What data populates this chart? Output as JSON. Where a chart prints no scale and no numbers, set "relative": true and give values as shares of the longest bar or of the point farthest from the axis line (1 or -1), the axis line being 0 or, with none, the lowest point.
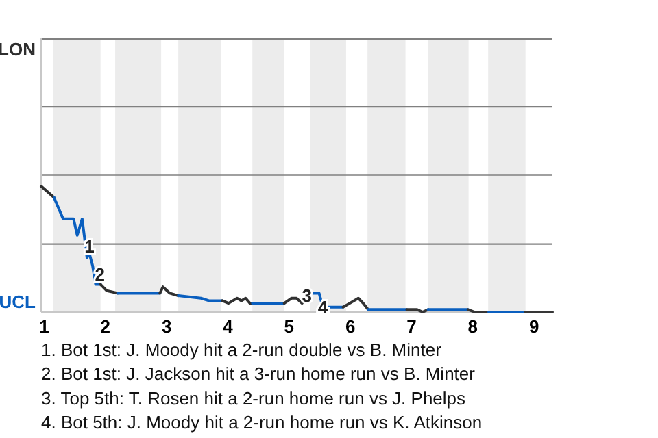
{
  "chart_data": {
    "type": "line",
    "relative": true,
    "xlim": [
      0.95,
      9.3
    ],
    "xticks": [
      1,
      2,
      3,
      4,
      5,
      6,
      7,
      8,
      9
    ],
    "marker": "none",
    "line_style": "solid",
    "ref_lines": [
      {
        "axis": "y",
        "value": 2.17,
        "label": "LON",
        "color": "#808080"
      },
      {
        "axis": "y",
        "value": 1.63,
        "color": "#808080"
      },
      {
        "axis": "y",
        "value": 1.09,
        "color": "#808080"
      },
      {
        "axis": "y",
        "value": 0.54,
        "color": "#808080"
      }
    ],
    "bands": [
      {
        "axis": "x",
        "from": 1.15,
        "to": 1.92,
        "color": "#ececec"
      },
      {
        "axis": "x",
        "from": 2.16,
        "to": 2.91,
        "color": "#ececec"
      },
      {
        "axis": "x",
        "from": 3.19,
        "to": 3.89,
        "color": "#ececec"
      },
      {
        "axis": "x",
        "from": 4.4,
        "to": 4.92,
        "color": "#ececec"
      },
      {
        "axis": "x",
        "from": 5.34,
        "to": 5.93,
        "color": "#ececec"
      },
      {
        "axis": "x",
        "from": 6.28,
        "to": 6.9,
        "color": "#ececec"
      },
      {
        "axis": "x",
        "from": 7.27,
        "to": 7.93,
        "color": "#ececec"
      },
      {
        "axis": "x",
        "from": 8.25,
        "to": 8.86,
        "color": "#ececec"
      }
    ],
    "series": [
      {
        "color": "#2e2e2e",
        "x": [
          0.95,
          1.16
        ],
        "values": [
          1,
          0.91
        ]
      },
      {
        "color": "#0a5fbf",
        "x": [
          1.16,
          1.31,
          1.48,
          1.54,
          1.62,
          1.7,
          1.73,
          1.79,
          1.84,
          1.92
        ],
        "values": [
          0.91,
          0.74,
          0.74,
          0.61,
          0.74,
          0.43,
          0.48,
          0.37,
          0.22,
          0.22
        ]
      },
      {
        "color": "#2f2f2f",
        "x": [
          1.92,
          2.02,
          2.2
        ],
        "values": [
          0.22,
          0.17,
          0.15
        ]
      },
      {
        "color": "#0a5fbf",
        "x": [
          2.2,
          2.89
        ],
        "values": [
          0.15,
          0.15
        ]
      },
      {
        "color": "#303030",
        "x": [
          2.89,
          2.94,
          3.05,
          3.19
        ],
        "values": [
          0.15,
          0.2,
          0.15,
          0.13
        ]
      },
      {
        "color": "#0a5fbf",
        "x": [
          3.19,
          3.56,
          3.69,
          3.91
        ],
        "values": [
          0.13,
          0.11,
          0.09,
          0.09
        ]
      },
      {
        "color": "#313131",
        "x": [
          3.91,
          4.01,
          4.15,
          4.22,
          4.29,
          4.36,
          4.4
        ],
        "values": [
          0.09,
          0.07,
          0.11,
          0.09,
          0.11,
          0.07,
          0.07
        ]
      },
      {
        "color": "#0a5fbf",
        "x": [
          4.4,
          4.92
        ],
        "values": [
          0.07,
          0.07
        ]
      },
      {
        "color": "#323232",
        "x": [
          4.92,
          5.04,
          5.12,
          5.21,
          5.29,
          5.34
        ],
        "values": [
          0.07,
          0.11,
          0.11,
          0.07,
          0.13,
          0.15
        ]
      },
      {
        "color": "#0a5fbf",
        "x": [
          5.34,
          5.49,
          5.55,
          5.79,
          5.88
        ],
        "values": [
          0.15,
          0.15,
          0.04,
          0.04,
          0.04
        ]
      },
      {
        "color": "#333333",
        "x": [
          5.88,
          5.99,
          6.13,
          6.21,
          6.29
        ],
        "values": [
          0.04,
          0.07,
          0.11,
          0.07,
          0.02
        ]
      },
      {
        "color": "#0a5fbf",
        "x": [
          6.29,
          6.92
        ],
        "values": [
          0.02,
          0.02
        ]
      },
      {
        "color": "#343434",
        "x": [
          6.92,
          7.09,
          7.18,
          7.27
        ],
        "values": [
          0.02,
          0.02,
          0,
          0.02
        ]
      },
      {
        "color": "#0a5fbf",
        "x": [
          7.27,
          7.92
        ],
        "values": [
          0.02,
          0.02
        ]
      },
      {
        "color": "#353535",
        "x": [
          7.92,
          8.03,
          8.26
        ],
        "values": [
          0.02,
          0,
          0
        ]
      },
      {
        "color": "#0a5fbf",
        "x": [
          8.26,
          8.86
        ],
        "values": [
          0,
          0
        ]
      },
      {
        "color": "#363636",
        "x": [
          8.86,
          9.3
        ],
        "values": [
          0,
          0
        ]
      }
    ],
    "annotations": [
      "UCL",
      {
        "text": "1",
        "x": 1.74,
        "y": 0.52
      },
      {
        "text": "2",
        "x": 1.91,
        "y": 0.3
      },
      {
        "text": "3",
        "x": 5.29,
        "y": 0.13
      },
      {
        "text": "4",
        "x": 5.55,
        "y": 0.04
      },
      "1. Bot 1st: J. Moody hit a 2-run double vs B. Minter",
      "2. Bot 1st: J. Jackson hit a 3-run home run vs B. Minter",
      "3. Top 5th: T. Rosen hit a 2-run home run vs J. Phelps",
      "4. Bot 5th: J. Moody hit a 2-run home run vs K. Atkinson"
    ]
  }
}
